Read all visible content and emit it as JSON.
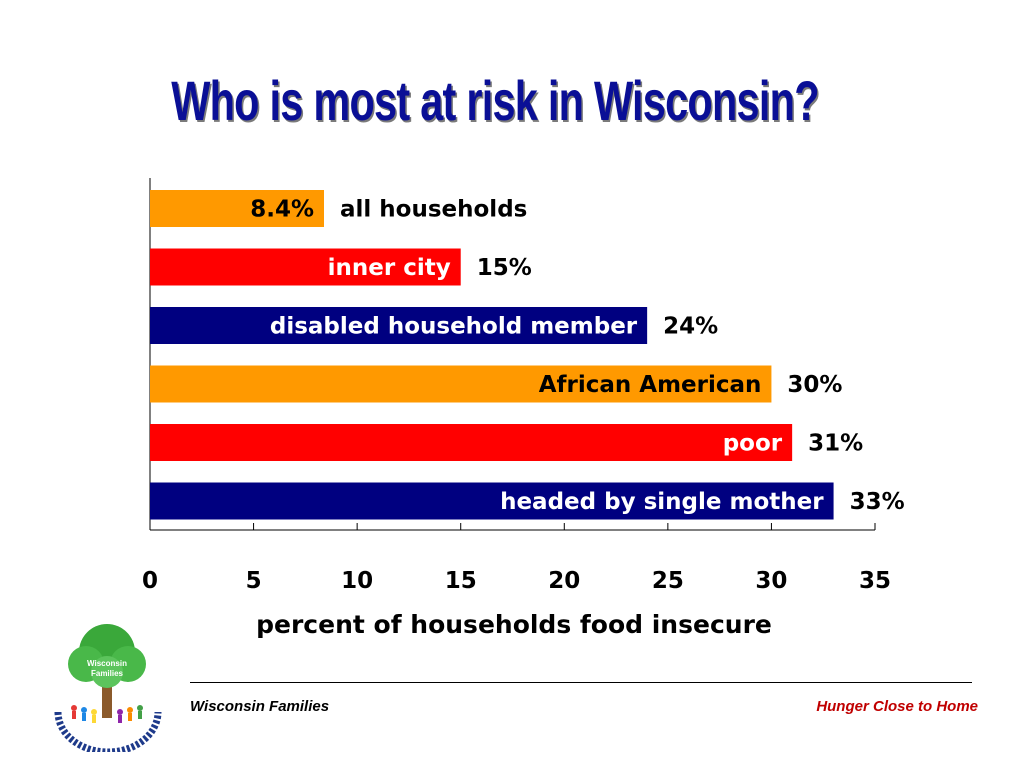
{
  "slide": {
    "title": "Who is most at risk in Wisconsin?",
    "footer_left": "Wisconsin Families",
    "footer_right": "Hunger Close to Home"
  },
  "logo": {
    "label_line1": "Wisconsin",
    "label_line2": "Families"
  },
  "colors": {
    "title": "#0a0f96",
    "orange": "#ff9900",
    "red": "#ff0000",
    "navy": "#000080",
    "footer_right": "#c00000"
  },
  "chart_data": {
    "type": "bar",
    "orientation": "horizontal",
    "categories": [
      "all households",
      "inner city",
      "disabled household member",
      "African American",
      "poor",
      "headed by single mother"
    ],
    "values": [
      8.4,
      15,
      24,
      30,
      31,
      33
    ],
    "value_labels": [
      "8.4%",
      "15%",
      "24%",
      "30%",
      "31%",
      "33%"
    ],
    "bar_colors": [
      "#ff9900",
      "#ff0000",
      "#000080",
      "#ff9900",
      "#ff0000",
      "#000080"
    ],
    "category_label_inside": [
      false,
      true,
      true,
      true,
      true,
      true
    ],
    "xlabel": "percent of households food insecure",
    "ylabel": "",
    "xlim": [
      0,
      35
    ],
    "xticks": [
      0,
      5,
      10,
      15,
      20,
      25,
      30,
      35
    ],
    "grid": false
  }
}
